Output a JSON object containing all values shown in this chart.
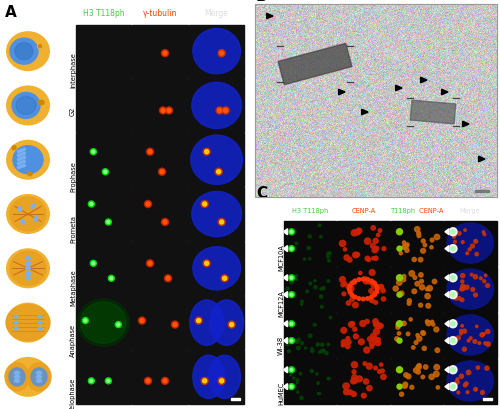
{
  "figure_width": 5.0,
  "figure_height": 4.1,
  "dpi": 100,
  "background_color": "#ffffff",
  "panel_A": {
    "label": "A",
    "col_headers": [
      "H3 T118ph",
      "γ-tubulin",
      "Merge"
    ],
    "col_header_colors": [
      "#44cc44",
      "#ff4400",
      "#dddddd"
    ],
    "row_labels": [
      "Interphase",
      "G2",
      "Prophase",
      "Prometa",
      "Metaphase",
      "Anaphase",
      "Telophase"
    ]
  },
  "panel_B": {
    "label": "B",
    "bg_color": "#cccccc"
  },
  "panel_C": {
    "label": "C",
    "col_headers": [
      "H3 T118ph",
      "CENP-A",
      "T118ph CENP-A",
      "Merge"
    ],
    "col_header_colors": [
      "#44cc44",
      "#ff4400",
      "#44cc44",
      "#dddddd"
    ],
    "col_header_colors2": [
      null,
      null,
      "#ff4400",
      null
    ],
    "row_labels": [
      "MCF10A",
      "MCF12A",
      "WI-38",
      "HuMEC"
    ]
  }
}
